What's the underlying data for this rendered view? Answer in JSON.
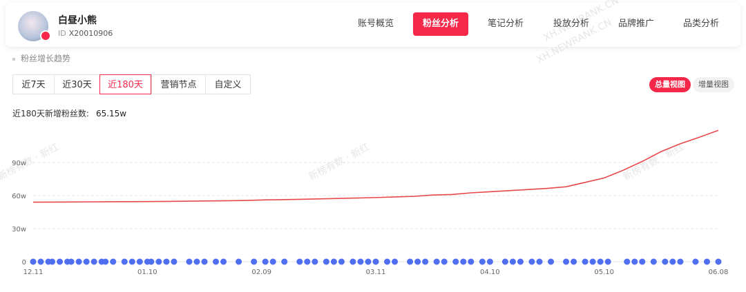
{
  "header": {
    "name": "白昼小熊",
    "id_label": "ID",
    "id": "X20010906",
    "nav": [
      "账号概览",
      "粉丝分析",
      "笔记分析",
      "投放分析",
      "品牌推广",
      "品类分析"
    ],
    "active_nav": 1
  },
  "section_title": "粉丝增长趋势",
  "ranges": [
    "近7天",
    "近30天",
    "近180天",
    "营销节点",
    "自定义"
  ],
  "active_range": 2,
  "views": [
    "总量视图",
    "增量视图"
  ],
  "active_view": 0,
  "stat": {
    "label": "近180天新增粉丝数:",
    "value": "65.15w"
  },
  "watermarks": [
    "XH.NEWRANK.CN",
    "XH.NEWRANK.CN",
    "新榜有数 · 新红",
    "新榜有数 · 新红",
    "新榜有数 · 新红"
  ],
  "chart_data": {
    "type": "line",
    "categories": [
      "12.11",
      null,
      null,
      null,
      null,
      null,
      "01.10",
      null,
      null,
      null,
      null,
      null,
      "02.09",
      null,
      null,
      null,
      null,
      null,
      "03.11",
      null,
      null,
      null,
      null,
      null,
      "04.10",
      null,
      null,
      null,
      null,
      null,
      "05.10",
      null,
      null,
      null,
      null,
      null,
      "06.08"
    ],
    "series": [
      {
        "color": "#e8474a",
        "values": [
          54.0,
          54.1,
          54.2,
          54.3,
          54.4,
          54.5,
          54.6,
          54.7,
          54.9,
          55.1,
          55.3,
          55.5,
          56.0,
          56.3,
          56.6,
          57.0,
          57.4,
          57.8,
          58.2,
          58.8,
          59.3,
          60.5,
          61.0,
          62.5,
          63.5,
          64.5,
          65.5,
          66.5,
          68.0,
          72.0,
          76.0,
          83.0,
          91.0,
          100.0,
          107.0,
          113.0,
          119.2
        ]
      }
    ],
    "events": {
      "color": "#4f6ef0",
      "xlim": [
        0,
        180
      ],
      "x": [
        0,
        2,
        4,
        5,
        7,
        9,
        10,
        12,
        14,
        16,
        18,
        19,
        21,
        24,
        26,
        28,
        30,
        31,
        33,
        35,
        37,
        41,
        43,
        45,
        48,
        50,
        54,
        58,
        61,
        63,
        66,
        70,
        72,
        74,
        77,
        79,
        81,
        84,
        86,
        88,
        90,
        93,
        95,
        99,
        101,
        103,
        106,
        108,
        111,
        113,
        115,
        118,
        120,
        124,
        126,
        128,
        131,
        133,
        136,
        140,
        142,
        145,
        147,
        149,
        151,
        156,
        158,
        160,
        163,
        166,
        168,
        170,
        174,
        177,
        180
      ],
      "values": [
        0,
        0,
        0,
        0,
        0,
        0,
        0,
        0,
        0,
        0,
        0,
        0,
        0,
        0,
        0,
        0,
        0,
        0,
        0,
        0,
        0,
        0,
        0,
        0,
        0,
        0,
        0,
        0,
        0,
        0,
        0,
        0,
        0,
        0,
        0,
        0,
        0,
        0,
        0,
        0,
        0,
        0,
        0,
        0,
        0,
        0,
        0,
        0,
        0,
        0,
        0,
        0,
        0,
        0,
        0,
        0,
        0,
        0,
        0,
        0,
        0,
        0,
        0,
        0,
        0,
        0,
        0,
        0,
        0,
        0,
        0,
        0,
        0,
        0,
        0
      ]
    },
    "ylim": [
      0,
      130
    ],
    "yticks": [
      0,
      {
        "value": 30,
        "label": "30w"
      },
      {
        "value": 60,
        "label": "60w"
      },
      {
        "value": 90,
        "label": "90w"
      }
    ],
    "grid": true
  }
}
